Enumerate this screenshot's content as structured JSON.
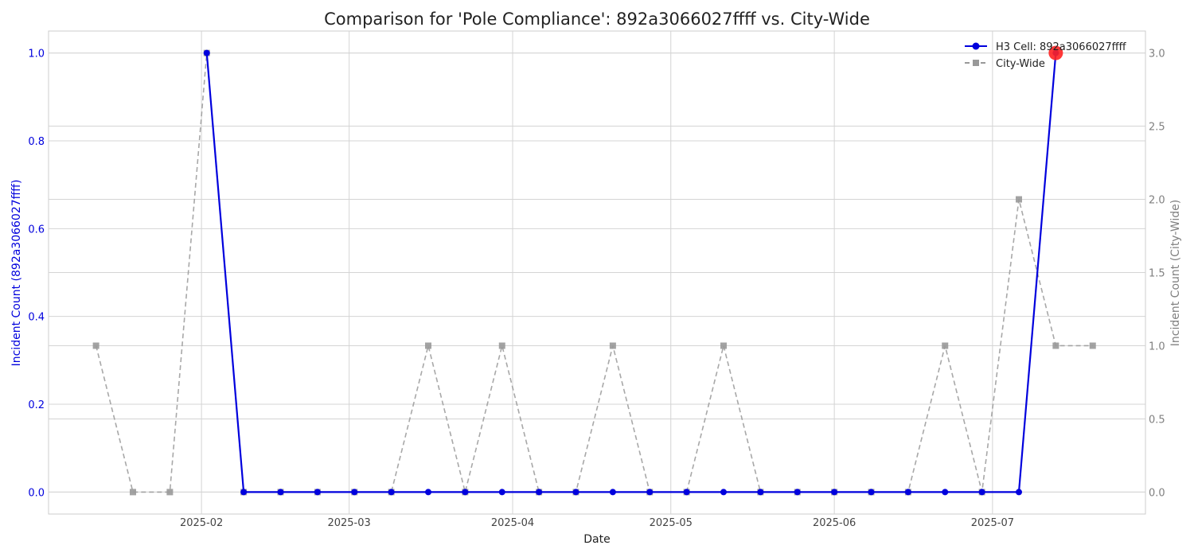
{
  "chart_data": {
    "type": "line",
    "title": "Comparison for 'Pole Compliance': 892a3066027ffff vs. City-Wide",
    "xlabel": "Date",
    "ylabel_left": "Incident Count (892a3066027ffff)",
    "ylabel_right": "Incident Count (City-Wide)",
    "xlim": [
      "2025-01-03",
      "2025-07-30"
    ],
    "ylim_left": [
      -0.05,
      1.05
    ],
    "ylim_right": [
      -0.15,
      3.15
    ],
    "x_ticks": [
      "2025-02",
      "2025-03",
      "2025-04",
      "2025-05",
      "2025-06",
      "2025-07"
    ],
    "y_ticks_left": [
      "0.0",
      "0.2",
      "0.4",
      "0.6",
      "0.8",
      "1.0"
    ],
    "y_ticks_right": [
      "0.0",
      "0.5",
      "1.0",
      "1.5",
      "2.0",
      "2.5",
      "3.0"
    ],
    "grid": true,
    "legend_position": "top-right",
    "series": [
      {
        "name": "H3 Cell: 892a3066027ffff",
        "axis": "left",
        "color": "#0000dd",
        "style": "solid",
        "marker": "circle",
        "x": [
          "2025-02-02",
          "2025-02-09",
          "2025-02-16",
          "2025-02-23",
          "2025-03-02",
          "2025-03-09",
          "2025-03-16",
          "2025-03-23",
          "2025-03-30",
          "2025-04-06",
          "2025-04-13",
          "2025-04-20",
          "2025-04-27",
          "2025-05-04",
          "2025-05-11",
          "2025-05-18",
          "2025-05-25",
          "2025-06-01",
          "2025-06-08",
          "2025-06-15",
          "2025-06-22",
          "2025-06-29",
          "2025-07-06",
          "2025-07-13"
        ],
        "values": [
          1,
          0,
          0,
          0,
          0,
          0,
          0,
          0,
          0,
          0,
          0,
          0,
          0,
          0,
          0,
          0,
          0,
          0,
          0,
          0,
          0,
          0,
          0,
          1
        ]
      },
      {
        "name": "City-Wide",
        "axis": "right",
        "color": "#999999",
        "style": "dashed",
        "marker": "square",
        "x": [
          "2025-01-12",
          "2025-01-19",
          "2025-01-26",
          "2025-02-02",
          "2025-02-09",
          "2025-02-16",
          "2025-02-23",
          "2025-03-02",
          "2025-03-09",
          "2025-03-16",
          "2025-03-23",
          "2025-03-30",
          "2025-04-06",
          "2025-04-13",
          "2025-04-20",
          "2025-04-27",
          "2025-05-04",
          "2025-05-11",
          "2025-05-18",
          "2025-05-25",
          "2025-06-01",
          "2025-06-08",
          "2025-06-15",
          "2025-06-22",
          "2025-06-29",
          "2025-07-06",
          "2025-07-13",
          "2025-07-20"
        ],
        "values": [
          1,
          0,
          0,
          3,
          0,
          0,
          0,
          0,
          0,
          1,
          0,
          1,
          0,
          0,
          1,
          0,
          0,
          1,
          0,
          0,
          0,
          0,
          0,
          1,
          0,
          2,
          1,
          1
        ]
      }
    ],
    "highlight": {
      "series": 0,
      "x": "2025-07-13",
      "value": 1,
      "color": "#ff2222"
    }
  }
}
